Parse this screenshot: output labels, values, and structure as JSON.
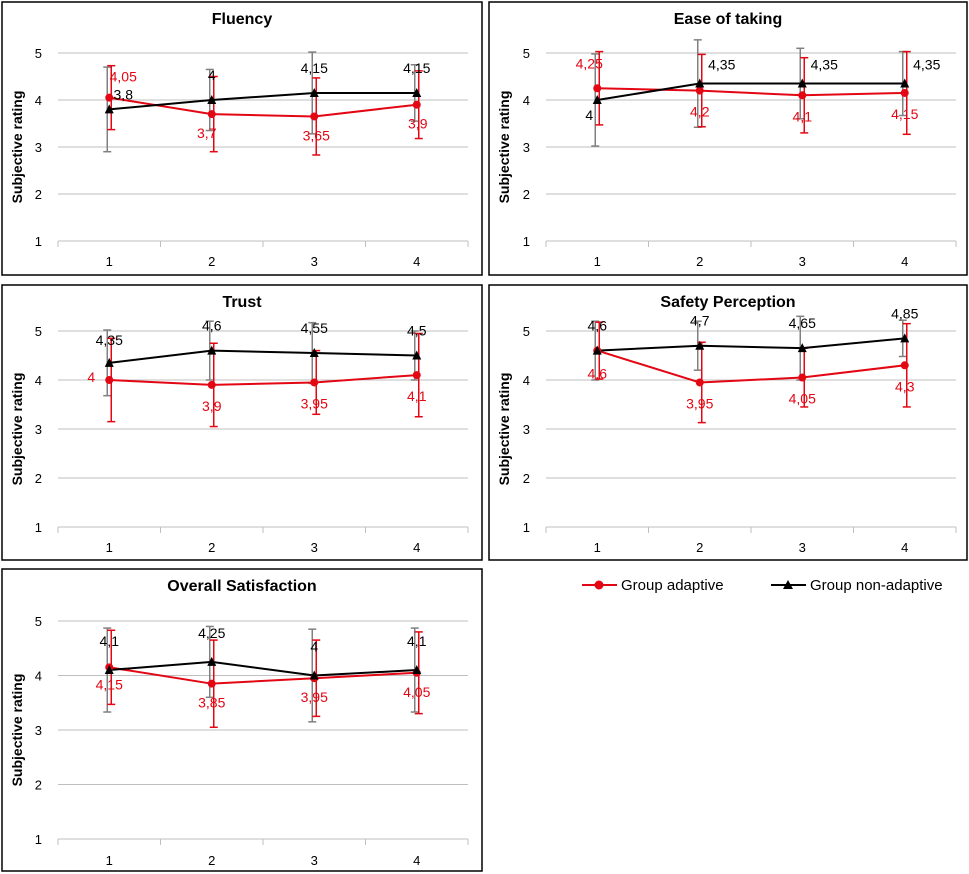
{
  "chart_data": [
    {
      "type": "line",
      "title": "Fluency",
      "xlabel": "",
      "ylabel": "Subjective rating",
      "ylim": [
        1,
        5
      ],
      "x": [
        1,
        2,
        3,
        4
      ],
      "grid": true,
      "series": [
        {
          "name": "Group adaptive",
          "color": "#e30613",
          "marker": "circle",
          "values": [
            4.05,
            3.7,
            3.65,
            3.9
          ],
          "labels": [
            "4,05",
            "3,7",
            "3,65",
            "3,9"
          ],
          "err_low": [
            3.37,
            2.9,
            2.83,
            3.18
          ],
          "err_high": [
            4.73,
            4.5,
            4.47,
            4.62
          ]
        },
        {
          "name": "Group non-adaptive",
          "color": "#000000",
          "marker": "triangle",
          "values": [
            3.8,
            4.0,
            4.15,
            4.15
          ],
          "labels": [
            "3,8",
            "4",
            "4,15",
            "4,15"
          ],
          "err_low": [
            2.9,
            3.35,
            3.28,
            3.55
          ],
          "err_high": [
            4.7,
            4.65,
            5.02,
            4.75
          ]
        }
      ]
    },
    {
      "type": "line",
      "title": "Ease of taking",
      "xlabel": "",
      "ylabel": "Subjective rating",
      "ylim": [
        1,
        5
      ],
      "x": [
        1,
        2,
        3,
        4
      ],
      "grid": true,
      "series": [
        {
          "name": "Group adaptive",
          "color": "#e30613",
          "marker": "circle",
          "values": [
            4.25,
            4.2,
            4.1,
            4.15
          ],
          "labels": [
            "4,25",
            "4,2",
            "4,1",
            "4,15"
          ],
          "err_low": [
            3.47,
            3.43,
            3.3,
            3.27
          ],
          "err_high": [
            5.03,
            4.97,
            4.9,
            5.03
          ]
        },
        {
          "name": "Group non-adaptive",
          "color": "#000000",
          "marker": "triangle",
          "values": [
            4.0,
            4.35,
            4.35,
            4.35
          ],
          "labels": [
            "4",
            "4,35",
            "4,35",
            "4,35"
          ],
          "err_low": [
            3.02,
            3.42,
            3.6,
            3.67
          ],
          "err_high": [
            4.98,
            5.28,
            5.1,
            5.03
          ]
        }
      ]
    },
    {
      "type": "line",
      "title": "Trust",
      "xlabel": "",
      "ylabel": "Subjective rating",
      "ylim": [
        1,
        5
      ],
      "x": [
        1,
        2,
        3,
        4
      ],
      "grid": true,
      "series": [
        {
          "name": "Group adaptive",
          "color": "#e30613",
          "marker": "circle",
          "values": [
            4.0,
            3.9,
            3.95,
            4.1
          ],
          "labels": [
            "4",
            "3,9",
            "3,95",
            "4,1"
          ],
          "err_low": [
            3.15,
            3.05,
            3.3,
            3.25
          ],
          "err_high": [
            4.85,
            4.75,
            4.6,
            4.95
          ]
        },
        {
          "name": "Group non-adaptive",
          "color": "#000000",
          "marker": "triangle",
          "values": [
            4.35,
            4.6,
            4.55,
            4.5
          ],
          "labels": [
            "4,35",
            "4,6",
            "4,55",
            "4,5"
          ],
          "err_low": [
            3.68,
            4.0,
            3.93,
            4.0
          ],
          "err_high": [
            5.02,
            5.2,
            5.17,
            5.0
          ]
        }
      ]
    },
    {
      "type": "line",
      "title": "Safety Perception",
      "xlabel": "",
      "ylabel": "Subjective rating",
      "ylim": [
        1,
        5
      ],
      "x": [
        1,
        2,
        3,
        4
      ],
      "grid": true,
      "series": [
        {
          "name": "Group adaptive",
          "color": "#e30613",
          "marker": "circle",
          "values": [
            4.6,
            3.95,
            4.05,
            4.3
          ],
          "labels": [
            "4,6",
            "3,95",
            "4,05",
            "4,3"
          ],
          "err_low": [
            4.02,
            3.13,
            3.45,
            3.45
          ],
          "err_high": [
            5.18,
            4.77,
            4.65,
            5.15
          ]
        },
        {
          "name": "Group non-adaptive",
          "color": "#000000",
          "marker": "triangle",
          "values": [
            4.6,
            4.7,
            4.65,
            4.85
          ],
          "labels": [
            "4,6",
            "4,7",
            "4,65",
            "4,85"
          ],
          "err_low": [
            4.0,
            4.2,
            4.0,
            4.48
          ],
          "err_high": [
            5.2,
            5.2,
            5.3,
            5.22
          ]
        }
      ]
    },
    {
      "type": "line",
      "title": "Overall Satisfaction",
      "xlabel": "",
      "ylabel": "Subjective rating",
      "ylim": [
        1,
        5
      ],
      "x": [
        1,
        2,
        3,
        4
      ],
      "grid": true,
      "series": [
        {
          "name": "Group adaptive",
          "color": "#e30613",
          "marker": "circle",
          "values": [
            4.15,
            3.85,
            3.95,
            4.05
          ],
          "labels": [
            "4,15",
            "3,85",
            "3,95",
            "4,05"
          ],
          "err_low": [
            3.47,
            3.05,
            3.25,
            3.3
          ],
          "err_high": [
            4.83,
            4.65,
            4.65,
            4.8
          ]
        },
        {
          "name": "Group non-adaptive",
          "color": "#000000",
          "marker": "triangle",
          "values": [
            4.1,
            4.25,
            4.0,
            4.1
          ],
          "labels": [
            "4,1",
            "4,25",
            "4",
            "4,1"
          ],
          "err_low": [
            3.33,
            3.6,
            3.15,
            3.33
          ],
          "err_high": [
            4.87,
            4.9,
            4.85,
            4.87
          ]
        }
      ]
    }
  ],
  "legend": {
    "items": [
      {
        "label": "Group adaptive",
        "color": "#e30613",
        "marker": "circle"
      },
      {
        "label": "Group non-adaptive",
        "color": "#000000",
        "marker": "triangle"
      }
    ]
  },
  "colors": {
    "grid": "#bfbfbf",
    "errorbar_adaptive": "#e30613",
    "errorbar_non_adaptive": "#808080",
    "frame": "#000000"
  }
}
